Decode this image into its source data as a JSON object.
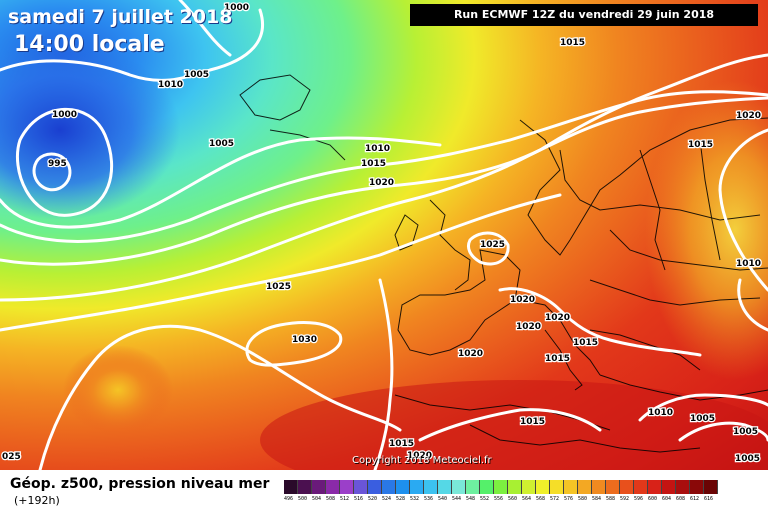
{
  "header": {
    "date": "samedi 7 juillet 2018",
    "time": "14:00 locale",
    "run": "Run ECMWF 12Z du vendredi 29 juin 2018"
  },
  "footer": {
    "field": "Géop. z500, pression niveau mer",
    "lead": "(+192h)",
    "copyright": "Copyright 2018 Meteociel.fr"
  },
  "scale": {
    "labels": [
      "496",
      "500",
      "504",
      "508",
      "512",
      "516",
      "520",
      "524",
      "528",
      "532",
      "536",
      "540",
      "544",
      "548",
      "552",
      "556",
      "560",
      "564",
      "568",
      "572",
      "576",
      "580",
      "584",
      "588",
      "592",
      "596",
      "600",
      "604",
      "608",
      "612",
      "616"
    ],
    "colors": [
      "#2a0a2a",
      "#4b1050",
      "#6a1a7a",
      "#8a2aa8",
      "#9b3fc9",
      "#6a55d8",
      "#3a5ee0",
      "#2a78e6",
      "#1e90ee",
      "#2aaaf2",
      "#3cc2f0",
      "#55d8e6",
      "#7ae8d8",
      "#6ef0a0",
      "#55f06a",
      "#7cf040",
      "#a8f032",
      "#d0f030",
      "#f0f02a",
      "#f5de28",
      "#f5c425",
      "#f3a823",
      "#f08a20",
      "#ec6c1e",
      "#e8501c",
      "#e2381a",
      "#d82218",
      "#c41412",
      "#a80e0e",
      "#8a0808",
      "#6a0404"
    ]
  },
  "isobars": [
    {
      "label": "1000",
      "pos": "top-center"
    },
    {
      "label": "1005",
      "pos": "north-atlantic"
    },
    {
      "label": "1010",
      "pos": "north-atlantic"
    },
    {
      "label": "1000",
      "pos": "low-center"
    },
    {
      "label": "995",
      "pos": "low-center"
    },
    {
      "label": "1005",
      "pos": "mid-atlantic"
    },
    {
      "label": "1015",
      "pos": "top-right"
    },
    {
      "label": "1010",
      "pos": "mid"
    },
    {
      "label": "1015",
      "pos": "mid"
    },
    {
      "label": "1020",
      "pos": "mid"
    },
    {
      "label": "1020",
      "pos": "scandinavia"
    },
    {
      "label": "1015",
      "pos": "scandinavia"
    },
    {
      "label": "1025",
      "pos": "north-sea"
    },
    {
      "label": "1025",
      "pos": "atlantic"
    },
    {
      "label": "1030",
      "pos": "azores"
    },
    {
      "label": "1010",
      "pos": "russia"
    },
    {
      "label": "1020",
      "pos": "france"
    },
    {
      "label": "1020",
      "pos": "alps"
    },
    {
      "label": "1020",
      "pos": "alps"
    },
    {
      "label": "1015",
      "pos": "balkans"
    },
    {
      "label": "1020",
      "pos": "iberia"
    },
    {
      "label": "1015",
      "pos": "italy"
    },
    {
      "label": "1015",
      "pos": "mediterranean"
    },
    {
      "label": "1015",
      "pos": "north-africa"
    },
    {
      "label": "1010",
      "pos": "turkey"
    },
    {
      "label": "1005",
      "pos": "middle-east"
    },
    {
      "label": "1005",
      "pos": "middle-east"
    },
    {
      "label": "1005",
      "pos": "middle-east"
    },
    {
      "label": "1020",
      "pos": "africa"
    },
    {
      "label": "025",
      "pos": "bottom-left"
    }
  ]
}
